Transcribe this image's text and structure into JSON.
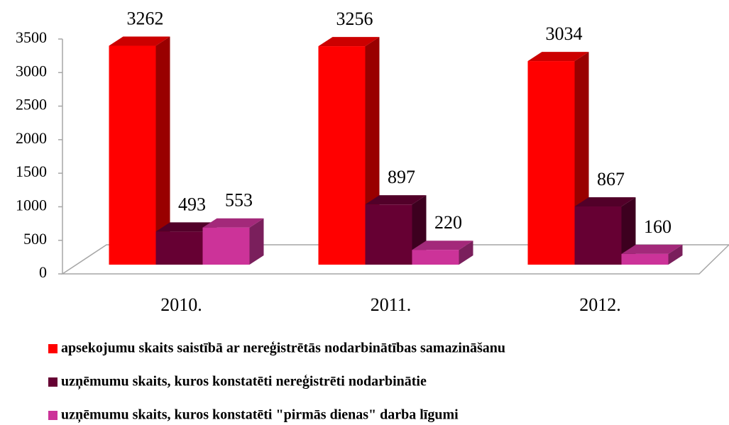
{
  "chart_data": {
    "type": "bar3d",
    "categories": [
      "2010.",
      "2011.",
      "2012."
    ],
    "series": [
      {
        "name": "apsekojumu skaits saistībā ar nereģistrētās nodarbinātības samazināšanu",
        "color": "#ff0000",
        "values": [
          3262,
          3256,
          3034
        ]
      },
      {
        "name": "uzņēmumu skaits, kuros konstatēti nereģistrēti nodarbinātie",
        "color": "#660033",
        "values": [
          493,
          897,
          867
        ]
      },
      {
        "name": "uzņēmumu skaits, kuros konstatēti \"pirmās dienas\" darba līgumi",
        "color": "#cc3399",
        "values": [
          553,
          220,
          160
        ]
      }
    ],
    "ylim": [
      0,
      3500
    ],
    "yticks": [
      0,
      500,
      1000,
      1500,
      2000,
      2500,
      3000,
      3500
    ],
    "legend": "bottom"
  }
}
